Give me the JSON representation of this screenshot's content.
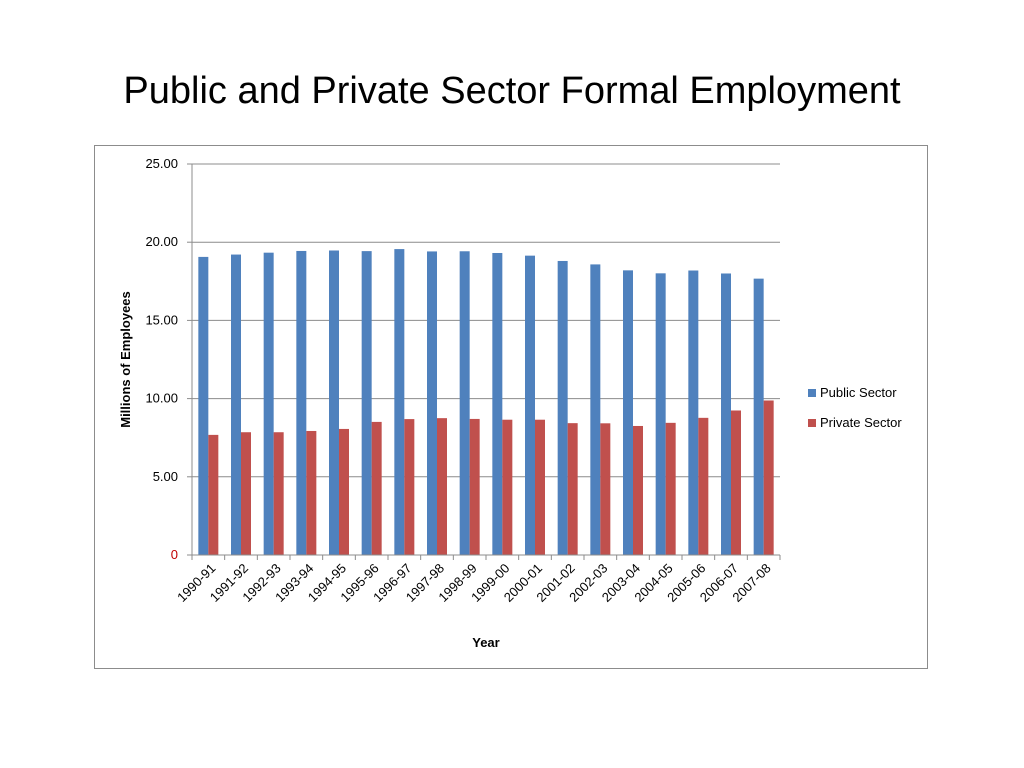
{
  "slide": {
    "title": "Public and Private Sector Formal Employment"
  },
  "chart_data": {
    "type": "bar",
    "title": "",
    "xlabel": "Year",
    "ylabel": "Millions of Employees",
    "ylim": [
      0,
      25
    ],
    "yticks": [
      {
        "value": 0,
        "label": "0",
        "color": "#c00000"
      },
      {
        "value": 5,
        "label": "5.00",
        "color": "#000000"
      },
      {
        "value": 10,
        "label": "10.00",
        "color": "#000000"
      },
      {
        "value": 15,
        "label": "15.00",
        "color": "#000000"
      },
      {
        "value": 20,
        "label": "20.00",
        "color": "#000000"
      },
      {
        "value": 25,
        "label": "25.00",
        "color": "#000000"
      }
    ],
    "grid": true,
    "legend_position": "right",
    "categories": [
      "1990-91",
      "1991-92",
      "1992-93",
      "1993-94",
      "1994-95",
      "1995-96",
      "1996-97",
      "1997-98",
      "1998-99",
      "1999-00",
      "2000-01",
      "2001-02",
      "2002-03",
      "2003-04",
      "2004-05",
      "2005-06",
      "2006-07",
      "2007-08"
    ],
    "series": [
      {
        "name": "Public Sector",
        "color": "#4f81bd",
        "values": [
          19.06,
          19.21,
          19.33,
          19.44,
          19.47,
          19.43,
          19.56,
          19.41,
          19.42,
          19.31,
          19.14,
          18.8,
          18.58,
          18.2,
          18.01,
          18.19,
          18.0,
          17.67
        ]
      },
      {
        "name": "Private Sector",
        "color": "#c0504d",
        "values": [
          7.68,
          7.85,
          7.85,
          7.93,
          8.06,
          8.51,
          8.69,
          8.75,
          8.7,
          8.65,
          8.65,
          8.43,
          8.42,
          8.25,
          8.45,
          8.77,
          9.24,
          9.88
        ]
      }
    ]
  }
}
